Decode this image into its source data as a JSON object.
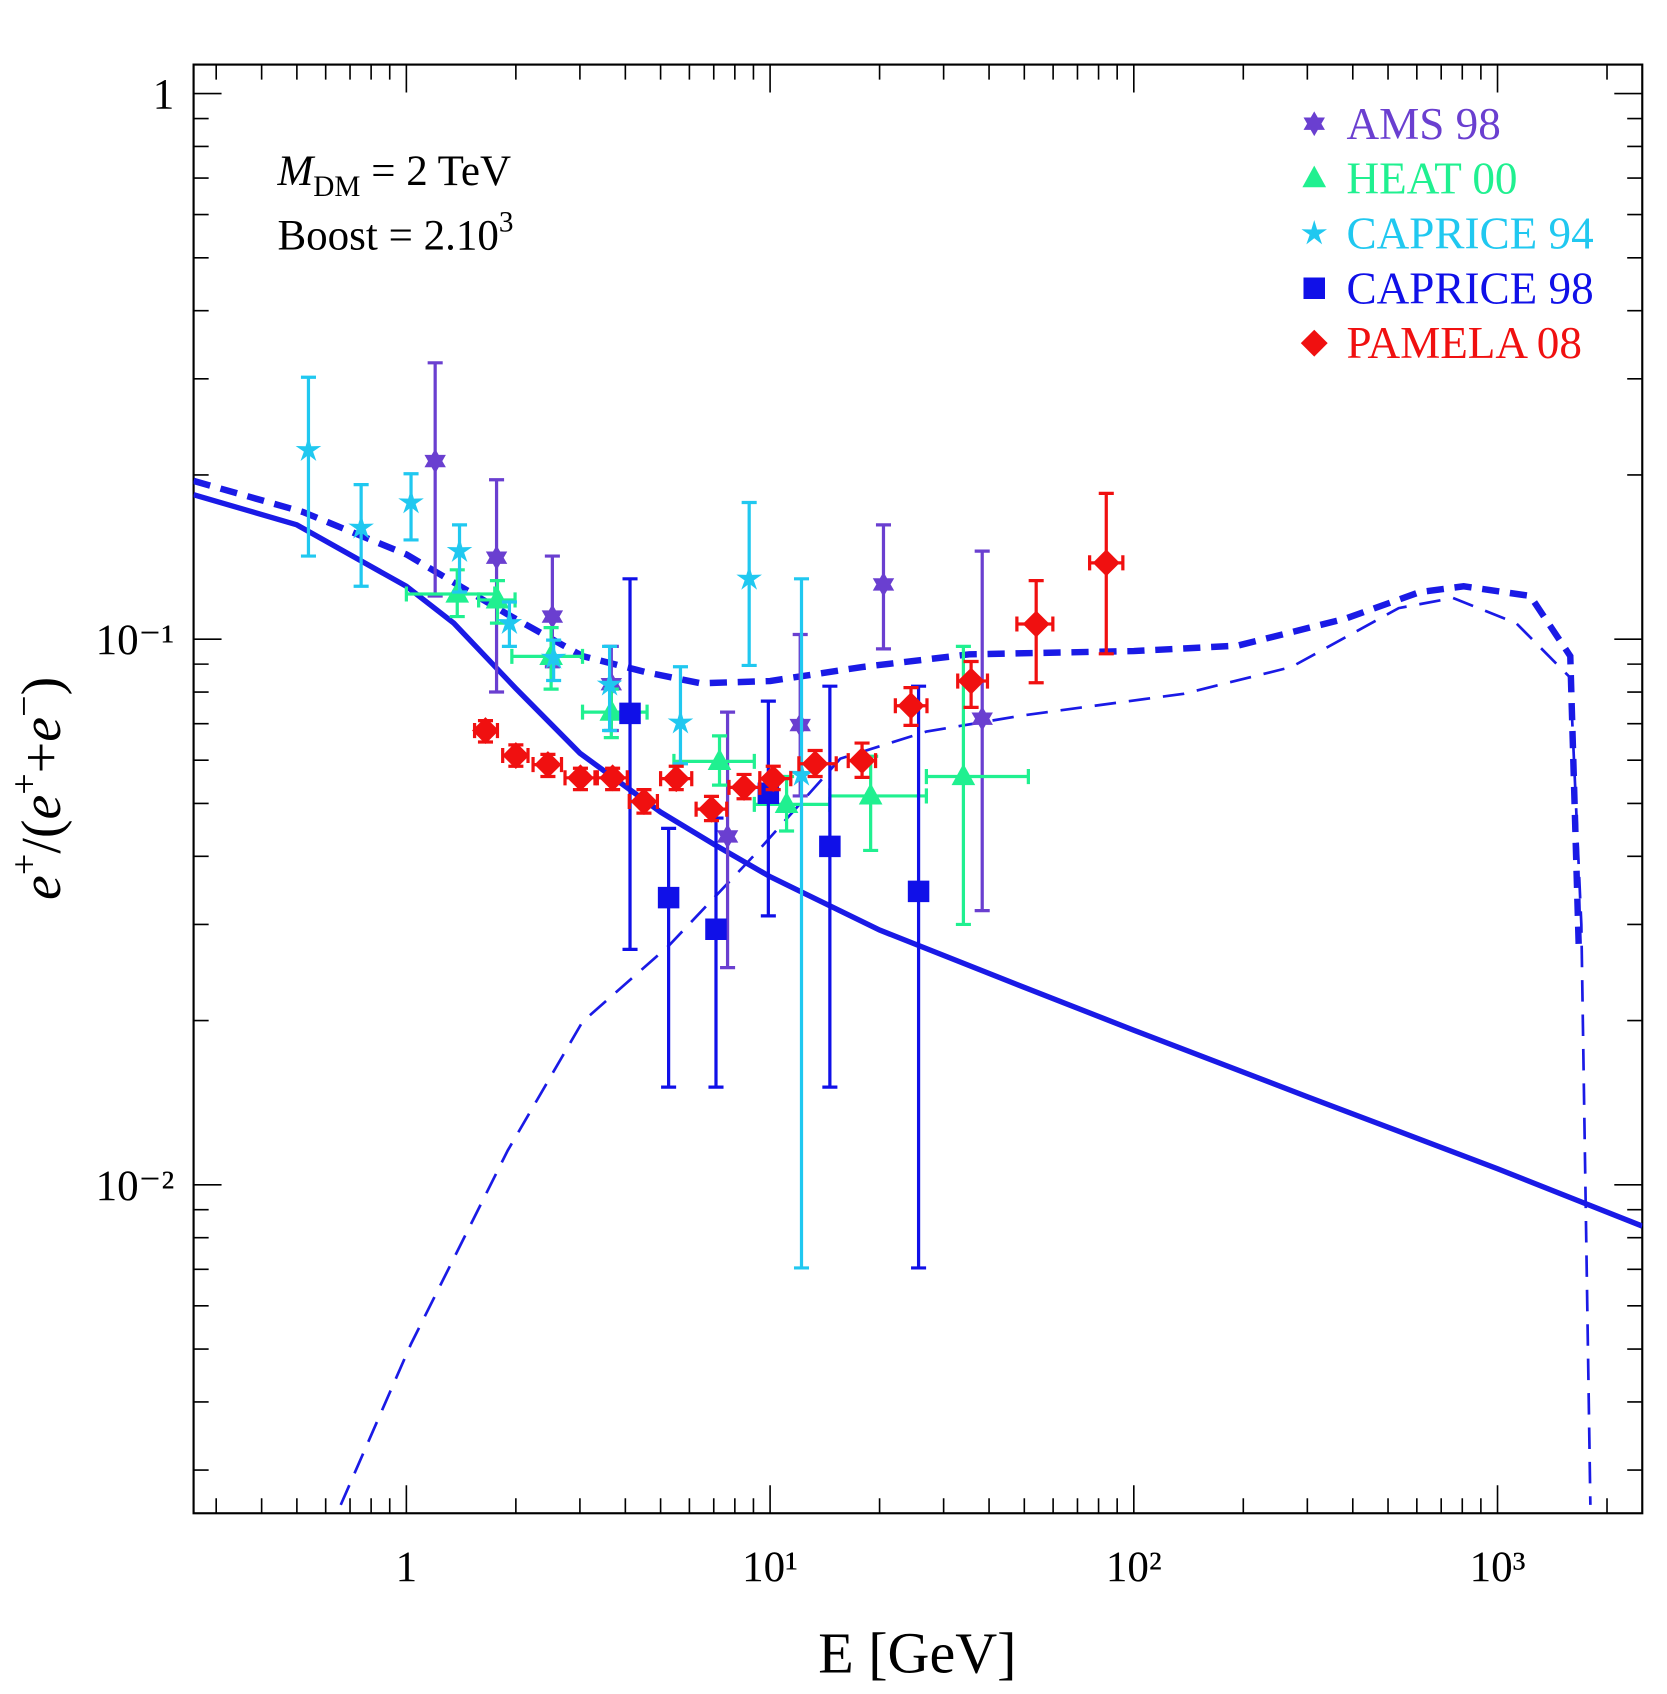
{
  "chart_data": {
    "type": "scatter",
    "xlabel": "E [GeV]",
    "ylabel_parts": [
      {
        "text": "e",
        "style": "italic"
      },
      {
        "text": "+",
        "style": "sup"
      },
      {
        "text": "/(",
        "style": "normal"
      },
      {
        "text": "e",
        "style": "italic"
      },
      {
        "text": "+",
        "style": "sup"
      },
      {
        "text": "+",
        "style": "normal"
      },
      {
        "text": "e",
        "style": "italic"
      },
      {
        "text": "−",
        "style": "sup"
      },
      {
        "text": ")",
        "style": "normal"
      }
    ],
    "annotations": [
      [
        {
          "text": "M",
          "style": "italic"
        },
        {
          "text": "DM",
          "style": "sub"
        },
        {
          "text": " = 2 TeV",
          "style": "normal"
        }
      ],
      [
        {
          "text": "Boost = 2.10",
          "style": "normal"
        },
        {
          "text": "3",
          "style": "sup"
        }
      ]
    ],
    "xscale": "log",
    "yscale": "log",
    "xlim": [
      0.26,
      2500
    ],
    "ylim": [
      0.0025,
      1.13
    ],
    "xticks": [
      1,
      {
        "value": 10,
        "label": "10¹"
      },
      {
        "value": 100,
        "label": "10²"
      },
      {
        "value": 1000,
        "label": "10³"
      }
    ],
    "yticks": [
      {
        "value": 0.01,
        "label": "10⁻²"
      },
      {
        "value": 0.1,
        "label": "10⁻¹"
      },
      1
    ],
    "xminorticks": [
      0.3,
      0.4,
      0.5,
      0.6,
      0.7,
      0.8,
      0.9,
      2,
      3,
      4,
      5,
      6,
      7,
      8,
      9,
      20,
      30,
      40,
      50,
      60,
      70,
      80,
      90,
      200,
      300,
      400,
      500,
      600,
      700,
      800,
      900,
      2000
    ],
    "yminorticks": [
      0.003,
      0.004,
      0.005,
      0.006,
      0.007,
      0.008,
      0.009,
      0.02,
      0.03,
      0.04,
      0.05,
      0.06,
      0.07,
      0.08,
      0.09,
      0.2,
      0.3,
      0.4,
      0.5,
      0.6,
      0.7,
      0.8,
      0.9
    ],
    "legend": "upper right",
    "series": [
      {
        "name": "AMS 98",
        "color": "#6a3fd0",
        "marker": "hexagram",
        "x": [
          1.2,
          1.77,
          2.52,
          3.66,
          7.64,
          12.1,
          20.5,
          38.3
        ],
        "values": [
          0.212,
          0.141,
          0.11,
          0.0827,
          0.0435,
          0.0696,
          0.126,
          0.0715
        ],
        "y_lower": [
          0.12,
          0.08,
          0.089,
          0.068,
          0.025,
          0.0516,
          0.096,
          0.0318
        ],
        "y_upper": [
          0.321,
          0.196,
          0.142,
          0.097,
          0.0735,
          0.102,
          0.162,
          0.145
        ]
      },
      {
        "name": "HEAT 00",
        "color": "#20f090",
        "marker": "triangle",
        "x": [
          1.38,
          1.78,
          2.5,
          3.66,
          7.26,
          11.1,
          18.9,
          34
        ],
        "values": [
          0.121,
          0.118,
          0.093,
          0.0735,
          0.0597,
          0.0498,
          0.0516,
          0.056
        ],
        "y_lower": [
          0.11,
          0.107,
          0.081,
          0.066,
          0.054,
          0.0445,
          0.041,
          0.03
        ],
        "y_upper": [
          0.134,
          0.128,
          0.105,
          0.081,
          0.0665,
          0.056,
          0.061,
          0.097
        ],
        "x_lower": [
          1.0,
          1.58,
          1.95,
          3.05,
          5.44,
          9.05,
          14.6,
          26.9
        ],
        "x_upper": [
          1.75,
          1.99,
          3.05,
          4.59,
          9.05,
          14.6,
          26.9,
          51.3
        ]
      },
      {
        "name": "CAPRICE 94",
        "color": "#20c8f0",
        "marker": "star",
        "x": [
          0.538,
          0.751,
          1.03,
          1.4,
          1.92,
          2.54,
          3.62,
          5.67,
          8.76,
          12.2
        ],
        "values": [
          0.222,
          0.16,
          0.178,
          0.145,
          0.107,
          0.0924,
          0.0825,
          0.0703,
          0.129,
          0.0564
        ],
        "y_lower": [
          0.142,
          0.125,
          0.152,
          0.122,
          0.097,
          0.084,
          0.068,
          0.0591,
          0.0895,
          0.00704
        ],
        "y_upper": [
          0.302,
          0.192,
          0.201,
          0.162,
          0.117,
          0.0996,
          0.097,
          0.089,
          0.178,
          0.129
        ]
      },
      {
        "name": "CAPRICE 98",
        "color": "#1010e8",
        "marker": "square",
        "x": [
          4.12,
          5.26,
          7.1,
          9.89,
          14.6,
          25.6
        ],
        "values": [
          0.0731,
          0.0336,
          0.0294,
          0.0522,
          0.0417,
          0.0345
        ],
        "y_lower": [
          0.027,
          0.0151,
          0.0151,
          0.0311,
          0.0151,
          0.00704
        ],
        "y_upper": [
          0.129,
          0.045,
          0.047,
          0.077,
          0.082,
          0.082
        ]
      },
      {
        "name": "PAMELA 08",
        "color": "#f01010",
        "marker": "diamond",
        "x": [
          1.65,
          2.0,
          2.45,
          3.01,
          3.69,
          4.5,
          5.52,
          6.9,
          8.48,
          10.2,
          13.3,
          17.9,
          24.4,
          35.7,
          53.9,
          84
        ],
        "values": [
          0.068,
          0.0612,
          0.0589,
          0.0557,
          0.0557,
          0.0504,
          0.0555,
          0.0488,
          0.0535,
          0.0555,
          0.0591,
          0.0599,
          0.0755,
          0.0838,
          0.1066,
          0.138
        ],
        "y_lower": [
          0.0648,
          0.0585,
          0.056,
          0.053,
          0.053,
          0.048,
          0.053,
          0.0465,
          0.051,
          0.053,
          0.056,
          0.0558,
          0.0695,
          0.075,
          0.0832,
          0.094
        ],
        "y_upper": [
          0.0709,
          0.064,
          0.0615,
          0.058,
          0.058,
          0.053,
          0.0585,
          0.0515,
          0.0565,
          0.0585,
          0.0625,
          0.0645,
          0.0815,
          0.091,
          0.128,
          0.185
        ],
        "x_lower": [
          1.54,
          1.84,
          2.23,
          2.73,
          3.35,
          4.1,
          5.0,
          6.26,
          7.71,
          9.37,
          12.0,
          16.4,
          22.1,
          32.8,
          47.7,
          75.6
        ],
        "x_upper": [
          1.78,
          2.16,
          2.67,
          3.3,
          4.05,
          4.9,
          6.09,
          7.6,
          9.37,
          11.4,
          15.2,
          19.5,
          27.0,
          39.6,
          59.9,
          93.3
        ]
      }
    ],
    "lines": [
      {
        "color": "#1a1ae6",
        "style": "solid",
        "width": 5,
        "x": [
          0.26,
          0.5,
          1,
          1.35,
          2,
          3,
          5,
          7,
          10,
          20,
          50,
          100,
          300,
          1000,
          2500
        ],
        "values": [
          0.184,
          0.162,
          0.125,
          0.107,
          0.0812,
          0.0618,
          0.0482,
          0.0421,
          0.0367,
          0.0293,
          0.023,
          0.0192,
          0.0145,
          0.0107,
          0.0084
        ]
      },
      {
        "color": "#1a1ae6",
        "style": "dashed",
        "width": 6,
        "x": [
          0.26,
          0.52,
          1,
          1.9,
          3.05,
          4.59,
          6.45,
          10,
          17.9,
          35.3,
          100,
          193,
          381,
          612,
          807,
          1230,
          1585,
          1672
        ],
        "values": [
          0.195,
          0.171,
          0.143,
          0.111,
          0.0931,
          0.0869,
          0.083,
          0.0838,
          0.0889,
          0.0938,
          0.0951,
          0.0973,
          0.109,
          0.122,
          0.125,
          0.12,
          0.0931,
          0.0274
        ]
      },
      {
        "color": "#1a1ae6",
        "style": "dashed",
        "width": 2.5,
        "x": [
          0.66,
          1.03,
          1.9,
          3.05,
          5.26,
          9.05,
          15.6,
          26.9,
          49.6,
          137,
          271,
          535,
          754,
          1125,
          1585,
          1700,
          1800
        ],
        "values": [
          0.00259,
          0.00511,
          0.01156,
          0.0199,
          0.0274,
          0.0402,
          0.0604,
          0.0677,
          0.0725,
          0.0794,
          0.0889,
          0.114,
          0.119,
          0.107,
          0.085,
          0.03,
          0.00259
        ]
      }
    ]
  }
}
